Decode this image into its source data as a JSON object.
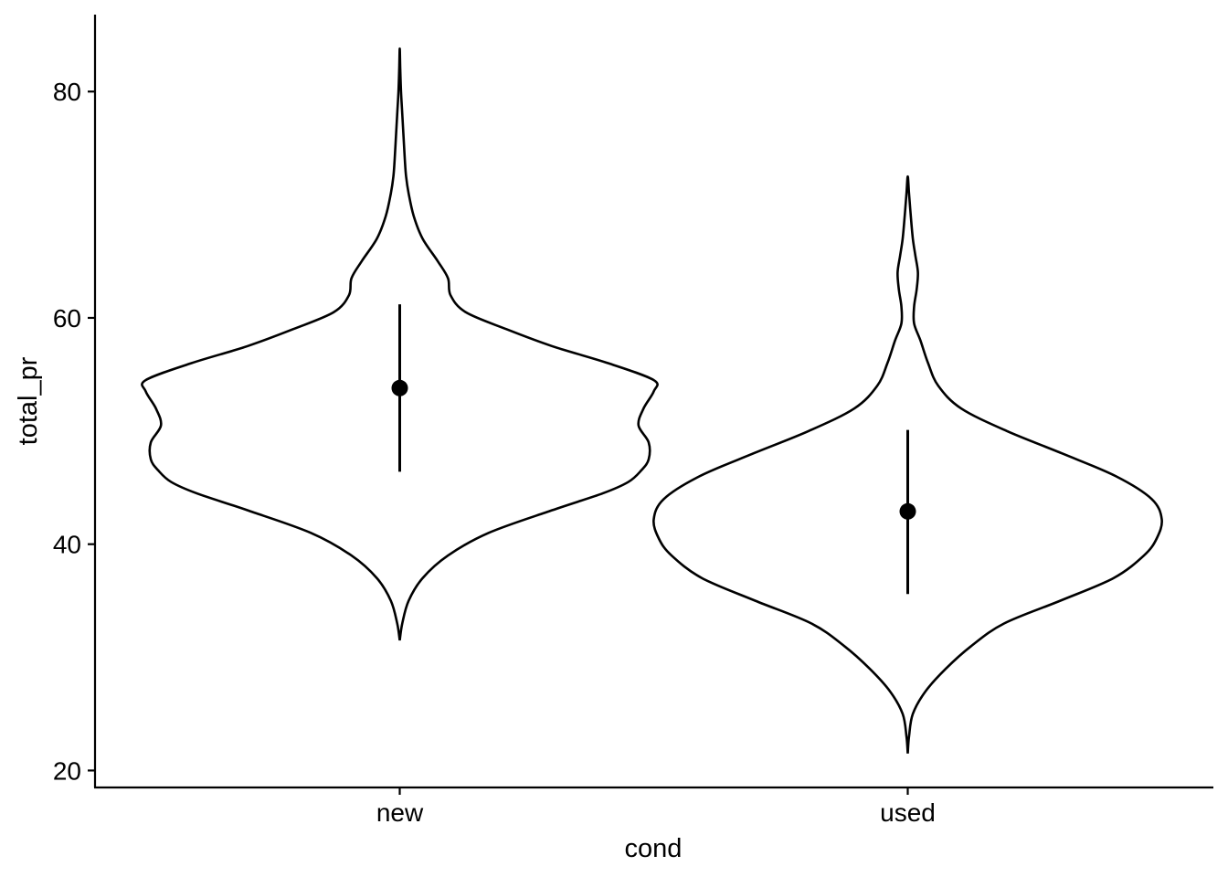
{
  "chart_data": {
    "type": "violin",
    "title": "",
    "xlabel": "cond",
    "ylabel": "total_pr",
    "categories": [
      "new",
      "used"
    ],
    "ylim": [
      18.5,
      86.8
    ],
    "yticks": [
      20,
      40,
      60,
      80
    ],
    "grid": false,
    "legend": "none",
    "violins": [
      {
        "category": "new",
        "profile": [
          [
            31.5,
            0.0
          ],
          [
            33,
            0.01
          ],
          [
            35,
            0.035
          ],
          [
            37,
            0.09
          ],
          [
            39,
            0.19
          ],
          [
            41,
            0.35
          ],
          [
            43,
            0.6
          ],
          [
            44.5,
            0.8
          ],
          [
            45.5,
            0.9
          ],
          [
            46.5,
            0.95
          ],
          [
            47.5,
            0.98
          ],
          [
            49,
            0.98
          ],
          [
            50.5,
            0.94
          ],
          [
            52,
            0.96
          ],
          [
            53.5,
            1.0
          ],
          [
            54.5,
            1.0
          ],
          [
            56,
            0.82
          ],
          [
            57.5,
            0.6
          ],
          [
            59,
            0.42
          ],
          [
            60.5,
            0.26
          ],
          [
            62,
            0.2
          ],
          [
            63.5,
            0.19
          ],
          [
            65,
            0.15
          ],
          [
            67,
            0.09
          ],
          [
            69,
            0.055
          ],
          [
            71,
            0.035
          ],
          [
            72.5,
            0.025
          ],
          [
            74,
            0.02
          ],
          [
            76,
            0.015
          ],
          [
            78,
            0.01
          ],
          [
            80,
            0.005
          ],
          [
            82,
            0.002
          ],
          [
            83.8,
            0.0
          ]
        ],
        "mean": 53.8,
        "interval": [
          46.4,
          61.2
        ]
      },
      {
        "category": "used",
        "profile": [
          [
            21.5,
            0.0
          ],
          [
            23,
            0.005
          ],
          [
            25,
            0.02
          ],
          [
            27,
            0.07
          ],
          [
            29,
            0.15
          ],
          [
            31,
            0.25
          ],
          [
            33,
            0.38
          ],
          [
            35,
            0.6
          ],
          [
            37,
            0.81
          ],
          [
            39,
            0.93
          ],
          [
            40.5,
            0.98
          ],
          [
            42.2,
            1.0
          ],
          [
            44,
            0.96
          ],
          [
            46,
            0.82
          ],
          [
            48,
            0.61
          ],
          [
            50,
            0.39
          ],
          [
            52,
            0.21
          ],
          [
            54,
            0.12
          ],
          [
            56,
            0.08
          ],
          [
            58,
            0.05
          ],
          [
            59.5,
            0.025
          ],
          [
            61,
            0.025
          ],
          [
            62.5,
            0.035
          ],
          [
            64,
            0.04
          ],
          [
            65.5,
            0.03
          ],
          [
            67,
            0.02
          ],
          [
            69,
            0.012
          ],
          [
            71,
            0.005
          ],
          [
            72.5,
            0.0
          ]
        ],
        "mean": 42.9,
        "interval": [
          35.6,
          50.1
        ]
      }
    ]
  }
}
